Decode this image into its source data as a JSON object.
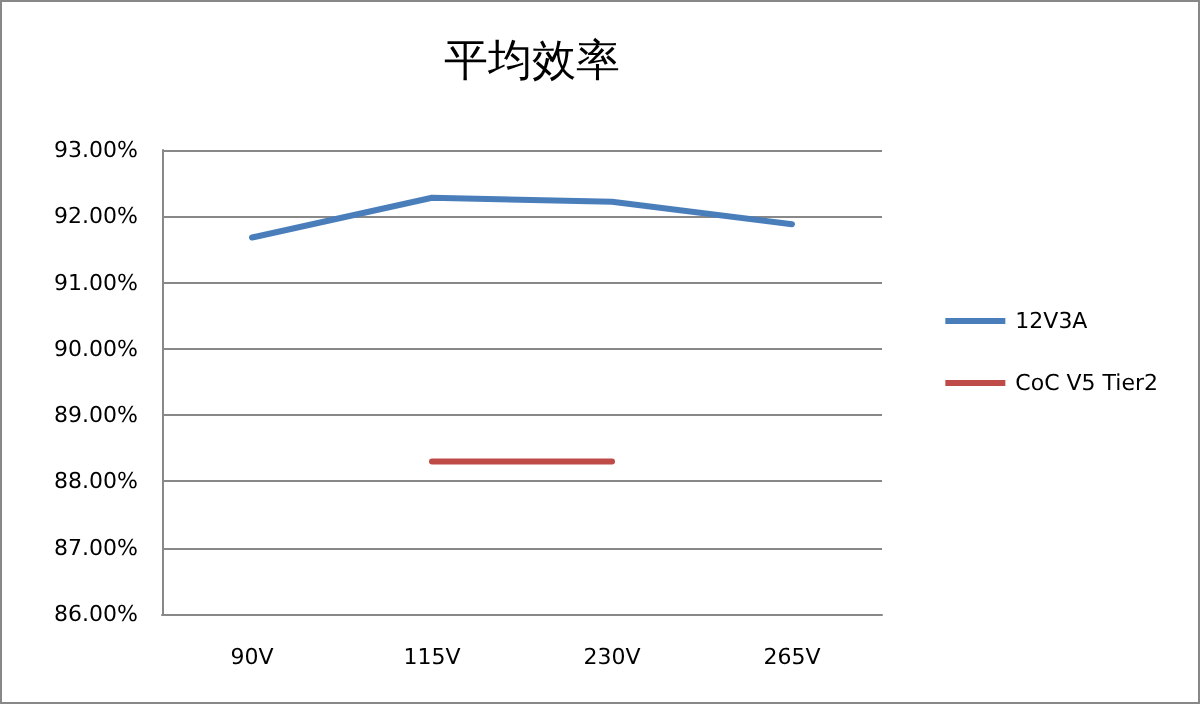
{
  "chart_data": {
    "type": "line",
    "title": "平均效率",
    "categories": [
      "90V",
      "115V",
      "230V",
      "265V"
    ],
    "series": [
      {
        "name": "12V3A",
        "color": "#4a7ebb",
        "values": [
          91.68,
          92.28,
          92.22,
          91.88
        ]
      },
      {
        "name": "CoC V5 Tier2",
        "color": "#be4b48",
        "values": [
          null,
          88.3,
          88.3,
          null
        ]
      }
    ],
    "ylim": [
      86,
      93
    ],
    "yticks": [
      {
        "value": 86,
        "label": "86.00%"
      },
      {
        "value": 87,
        "label": "87.00%"
      },
      {
        "value": 88,
        "label": "88.00%"
      },
      {
        "value": 89,
        "label": "89.00%"
      },
      {
        "value": 90,
        "label": "90.00%"
      },
      {
        "value": 91,
        "label": "91.00%"
      },
      {
        "value": 92,
        "label": "92.00%"
      },
      {
        "value": 93,
        "label": "93.00%"
      }
    ],
    "grid": "y",
    "legend": "right",
    "marker": "none",
    "line_style": "solid"
  }
}
